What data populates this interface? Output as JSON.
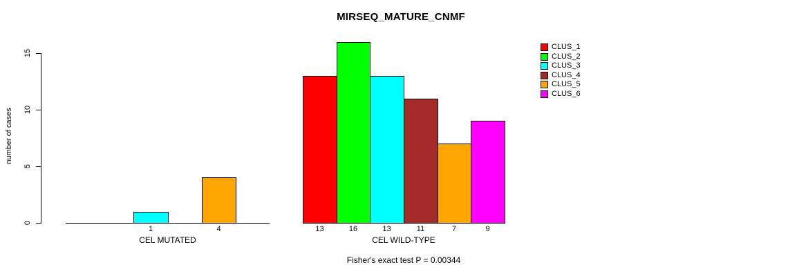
{
  "chart_data": {
    "type": "bar",
    "title": "MIRSEQ_MATURE_CNMF",
    "ylabel": "number of cases",
    "xlabel": "",
    "ylim": [
      0,
      15
    ],
    "yticks": [
      0,
      5,
      10,
      15
    ],
    "grid": false,
    "legend_position": "top-right",
    "legend": [
      {
        "name": "CLUS_1",
        "color": "#ff0000"
      },
      {
        "name": "CLUS_2",
        "color": "#00ff00"
      },
      {
        "name": "CLUS_3",
        "color": "#00ffff"
      },
      {
        "name": "CLUS_4",
        "color": "#a52a2a"
      },
      {
        "name": "CLUS_5",
        "color": "#ffa500"
      },
      {
        "name": "CLUS_6",
        "color": "#ff00ff"
      }
    ],
    "groups": [
      {
        "label": "CEL MUTATED",
        "values": [
          0,
          0,
          1,
          0,
          4,
          0
        ],
        "bar_labels": [
          "",
          "",
          "1",
          "",
          "4",
          ""
        ]
      },
      {
        "label": "CEL WILD-TYPE",
        "values": [
          13,
          16,
          13,
          11,
          7,
          9
        ],
        "bar_labels": [
          "13",
          "16",
          "13",
          "11",
          "7",
          "9"
        ]
      }
    ],
    "footer": "Fisher's exact test P = 0.00344"
  }
}
